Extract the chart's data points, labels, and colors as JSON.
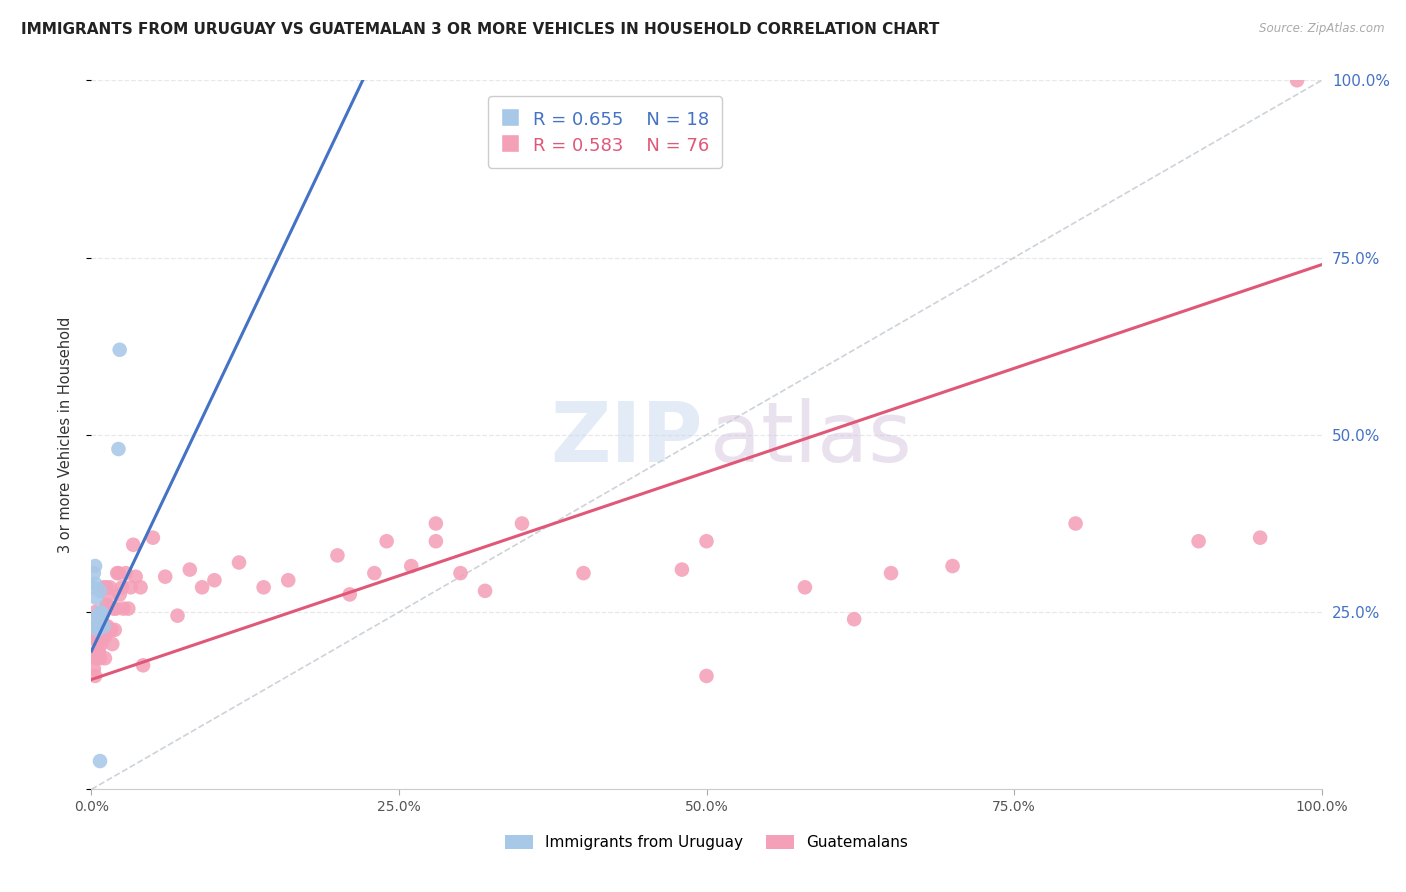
{
  "title": "IMMIGRANTS FROM URUGUAY VS GUATEMALAN 3 OR MORE VEHICLES IN HOUSEHOLD CORRELATION CHART",
  "source": "Source: ZipAtlas.com",
  "ylabel": "3 or more Vehicles in Household",
  "legend_label_1": "Immigrants from Uruguay",
  "legend_label_2": "Guatemalans",
  "R1": "0.655",
  "N1": "18",
  "R2": "0.583",
  "N2": "76",
  "color_uruguay": "#a8c8e8",
  "color_guatemalan": "#f4a0b8",
  "color_line_uruguay": "#4472c4",
  "color_line_guatemalan": "#e05878",
  "color_diag": "#c0c8d0",
  "color_tick_right": "#4472c4",
  "title_color": "#222222",
  "source_color": "#aaaaaa",
  "ylabel_color": "#333333",
  "grid_color": "#e8e8e8",
  "background_color": "#ffffff",
  "uruguay_x": [
    0.001,
    0.002,
    0.003,
    0.003,
    0.004,
    0.004,
    0.005,
    0.005,
    0.006,
    0.006,
    0.007,
    0.007,
    0.008,
    0.009,
    0.01,
    0.022,
    0.023,
    0.007
  ],
  "uruguay_y": [
    0.285,
    0.305,
    0.315,
    0.29,
    0.27,
    0.235,
    0.245,
    0.225,
    0.245,
    0.23,
    0.235,
    0.28,
    0.25,
    0.245,
    0.23,
    0.48,
    0.62,
    0.04
  ],
  "guatemalan_x": [
    0.001,
    0.002,
    0.002,
    0.003,
    0.003,
    0.004,
    0.004,
    0.005,
    0.005,
    0.006,
    0.006,
    0.007,
    0.007,
    0.008,
    0.008,
    0.009,
    0.009,
    0.01,
    0.01,
    0.011,
    0.011,
    0.012,
    0.012,
    0.013,
    0.013,
    0.014,
    0.015,
    0.015,
    0.016,
    0.017,
    0.018,
    0.019,
    0.02,
    0.021,
    0.022,
    0.023,
    0.025,
    0.026,
    0.028,
    0.03,
    0.032,
    0.034,
    0.036,
    0.04,
    0.042,
    0.05,
    0.06,
    0.07,
    0.08,
    0.09,
    0.1,
    0.12,
    0.14,
    0.16,
    0.2,
    0.24,
    0.28,
    0.32,
    0.4,
    0.5,
    0.5,
    0.58,
    0.62,
    0.65,
    0.7,
    0.8,
    0.9,
    0.95,
    0.48,
    0.35,
    0.3,
    0.28,
    0.26,
    0.23,
    0.21,
    0.98
  ],
  "guatemalan_y": [
    0.215,
    0.19,
    0.17,
    0.25,
    0.16,
    0.21,
    0.185,
    0.23,
    0.195,
    0.235,
    0.195,
    0.21,
    0.185,
    0.25,
    0.205,
    0.235,
    0.22,
    0.285,
    0.25,
    0.215,
    0.185,
    0.26,
    0.285,
    0.23,
    0.26,
    0.275,
    0.285,
    0.225,
    0.225,
    0.205,
    0.255,
    0.225,
    0.255,
    0.305,
    0.305,
    0.275,
    0.285,
    0.255,
    0.305,
    0.255,
    0.285,
    0.345,
    0.3,
    0.285,
    0.175,
    0.355,
    0.3,
    0.245,
    0.31,
    0.285,
    0.295,
    0.32,
    0.285,
    0.295,
    0.33,
    0.35,
    0.35,
    0.28,
    0.305,
    0.35,
    0.16,
    0.285,
    0.24,
    0.305,
    0.315,
    0.375,
    0.35,
    0.355,
    0.31,
    0.375,
    0.305,
    0.375,
    0.315,
    0.305,
    0.275,
    1.0
  ],
  "line_uruguay_x0": 0.0,
  "line_uruguay_y0": 0.195,
  "line_uruguay_x1": 0.1,
  "line_uruguay_y1": 0.56,
  "line_guatemalan_x0": 0.0,
  "line_guatemalan_y0": 0.155,
  "line_guatemalan_x1": 1.0,
  "line_guatemalan_y1": 0.74,
  "xlim": [
    0.0,
    1.0
  ],
  "ylim": [
    0.0,
    1.0
  ]
}
